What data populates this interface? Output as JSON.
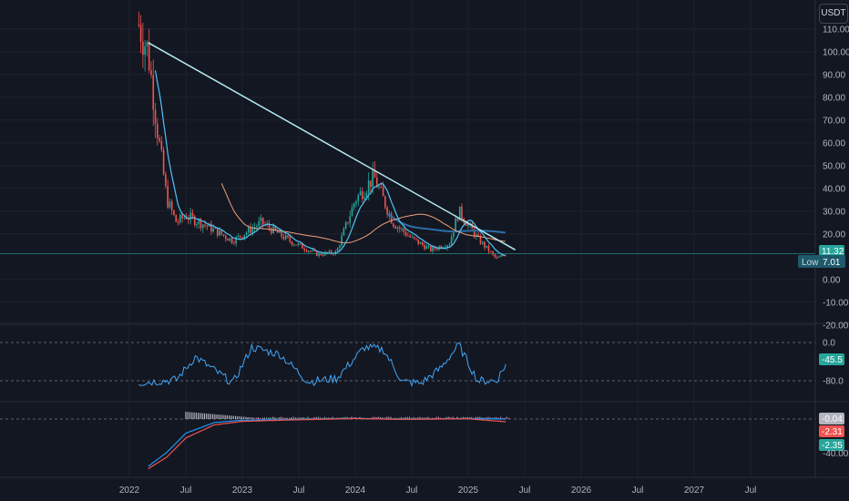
{
  "currency": "USDT",
  "price_axis": {
    "ticks": [
      "110.00",
      "100.00",
      "90.00",
      "80.00",
      "70.00",
      "60.00",
      "50.00",
      "40.00",
      "30.00",
      "20.00",
      "0.00",
      "-10.00",
      "-20.00"
    ],
    "last_price": "11.32",
    "low_label": "Low",
    "low_value": "7.01"
  },
  "oscillator_axis": {
    "ticks": [
      "0.0",
      "-80.0"
    ],
    "current": "-45.5"
  },
  "macd_axis": {
    "values": [
      "-0.04",
      "-2.31",
      "-2.35"
    ],
    "hidden_tick": "-40.00"
  },
  "time_axis": [
    "2022",
    "Jul",
    "2023",
    "Jul",
    "2024",
    "Jul",
    "2025",
    "Jul",
    "2026",
    "Jul",
    "2027",
    "Jul"
  ],
  "colors": {
    "background": "#131722",
    "grid": "#1e222d",
    "up": "#26a69a",
    "down": "#ef5350",
    "trendline": "#b2ebf2",
    "ma_long": "#2a6fa8",
    "ma_mid": "#f0a07a",
    "ma_short": "#4fc3f7",
    "oscillator": "#42a5f5",
    "macd": "#2196f3",
    "signal": "#ef5350",
    "last_price_badge": "#26a69a",
    "low_badge": "#1e5a6b"
  },
  "chart_data": [
    {
      "type": "line",
      "panel": "price",
      "description": "Candlestick price chart with moving averages and a descending trendline",
      "x": [
        "2022-02",
        "2022-03",
        "2022-04",
        "2022-05",
        "2022-06",
        "2022-07",
        "2022-09",
        "2022-12",
        "2023-03",
        "2023-06",
        "2023-09",
        "2023-11",
        "2024-01",
        "2024-03",
        "2024-05",
        "2024-07",
        "2024-09",
        "2024-11",
        "2024-12",
        "2025-02",
        "2025-04",
        "2025-05"
      ],
      "series": [
        {
          "name": "",
          "values": [
            112,
            100,
            65,
            35,
            25,
            28,
            24,
            17,
            25,
            17,
            11,
            12,
            35,
            45,
            25,
            18,
            13,
            16,
            30,
            18,
            9,
            11.3
          ]
        }
      ],
      "trendline": {
        "from": [
          "2022-03",
          104
        ],
        "to": [
          "2025-06",
          13
        ]
      },
      "ylim": [
        -20,
        115
      ],
      "last": 11.32,
      "low": 7.01
    },
    {
      "type": "line",
      "panel": "oscillator",
      "x": [
        "2022-02",
        "2022-06",
        "2022-08",
        "2022-12",
        "2023-02",
        "2023-05",
        "2023-08",
        "2023-11",
        "2024-02",
        "2024-04",
        "2024-06",
        "2024-08",
        "2024-10",
        "2024-12",
        "2025-02",
        "2025-04",
        "2025-05"
      ],
      "series": [
        {
          "name": "",
          "values": [
            -84,
            -78,
            -30,
            -85,
            -10,
            -25,
            -82,
            -75,
            -10,
            -15,
            -82,
            -85,
            -55,
            -5,
            -80,
            -80,
            -45.5
          ]
        }
      ],
      "ylim": [
        -95,
        5
      ],
      "levels": [
        0,
        -80
      ]
    },
    {
      "type": "line",
      "panel": "macd",
      "x": [
        "2022-03",
        "2022-05",
        "2022-07",
        "2022-10",
        "2023-01",
        "2023-06",
        "2024-01",
        "2024-06",
        "2025-01",
        "2025-05"
      ],
      "series": [
        {
          "name": "",
          "values": [
            -40,
            -28,
            -12,
            -3,
            -1,
            -0.5,
            0.5,
            -0.2,
            0.3,
            -0.04
          ]
        },
        {
          "name": "",
          "values": [
            -42,
            -32,
            -16,
            -5,
            -2,
            -0.8,
            0.4,
            -0.3,
            0.2,
            -2.31
          ]
        }
      ],
      "ylim": [
        -45,
        5
      ]
    }
  ]
}
